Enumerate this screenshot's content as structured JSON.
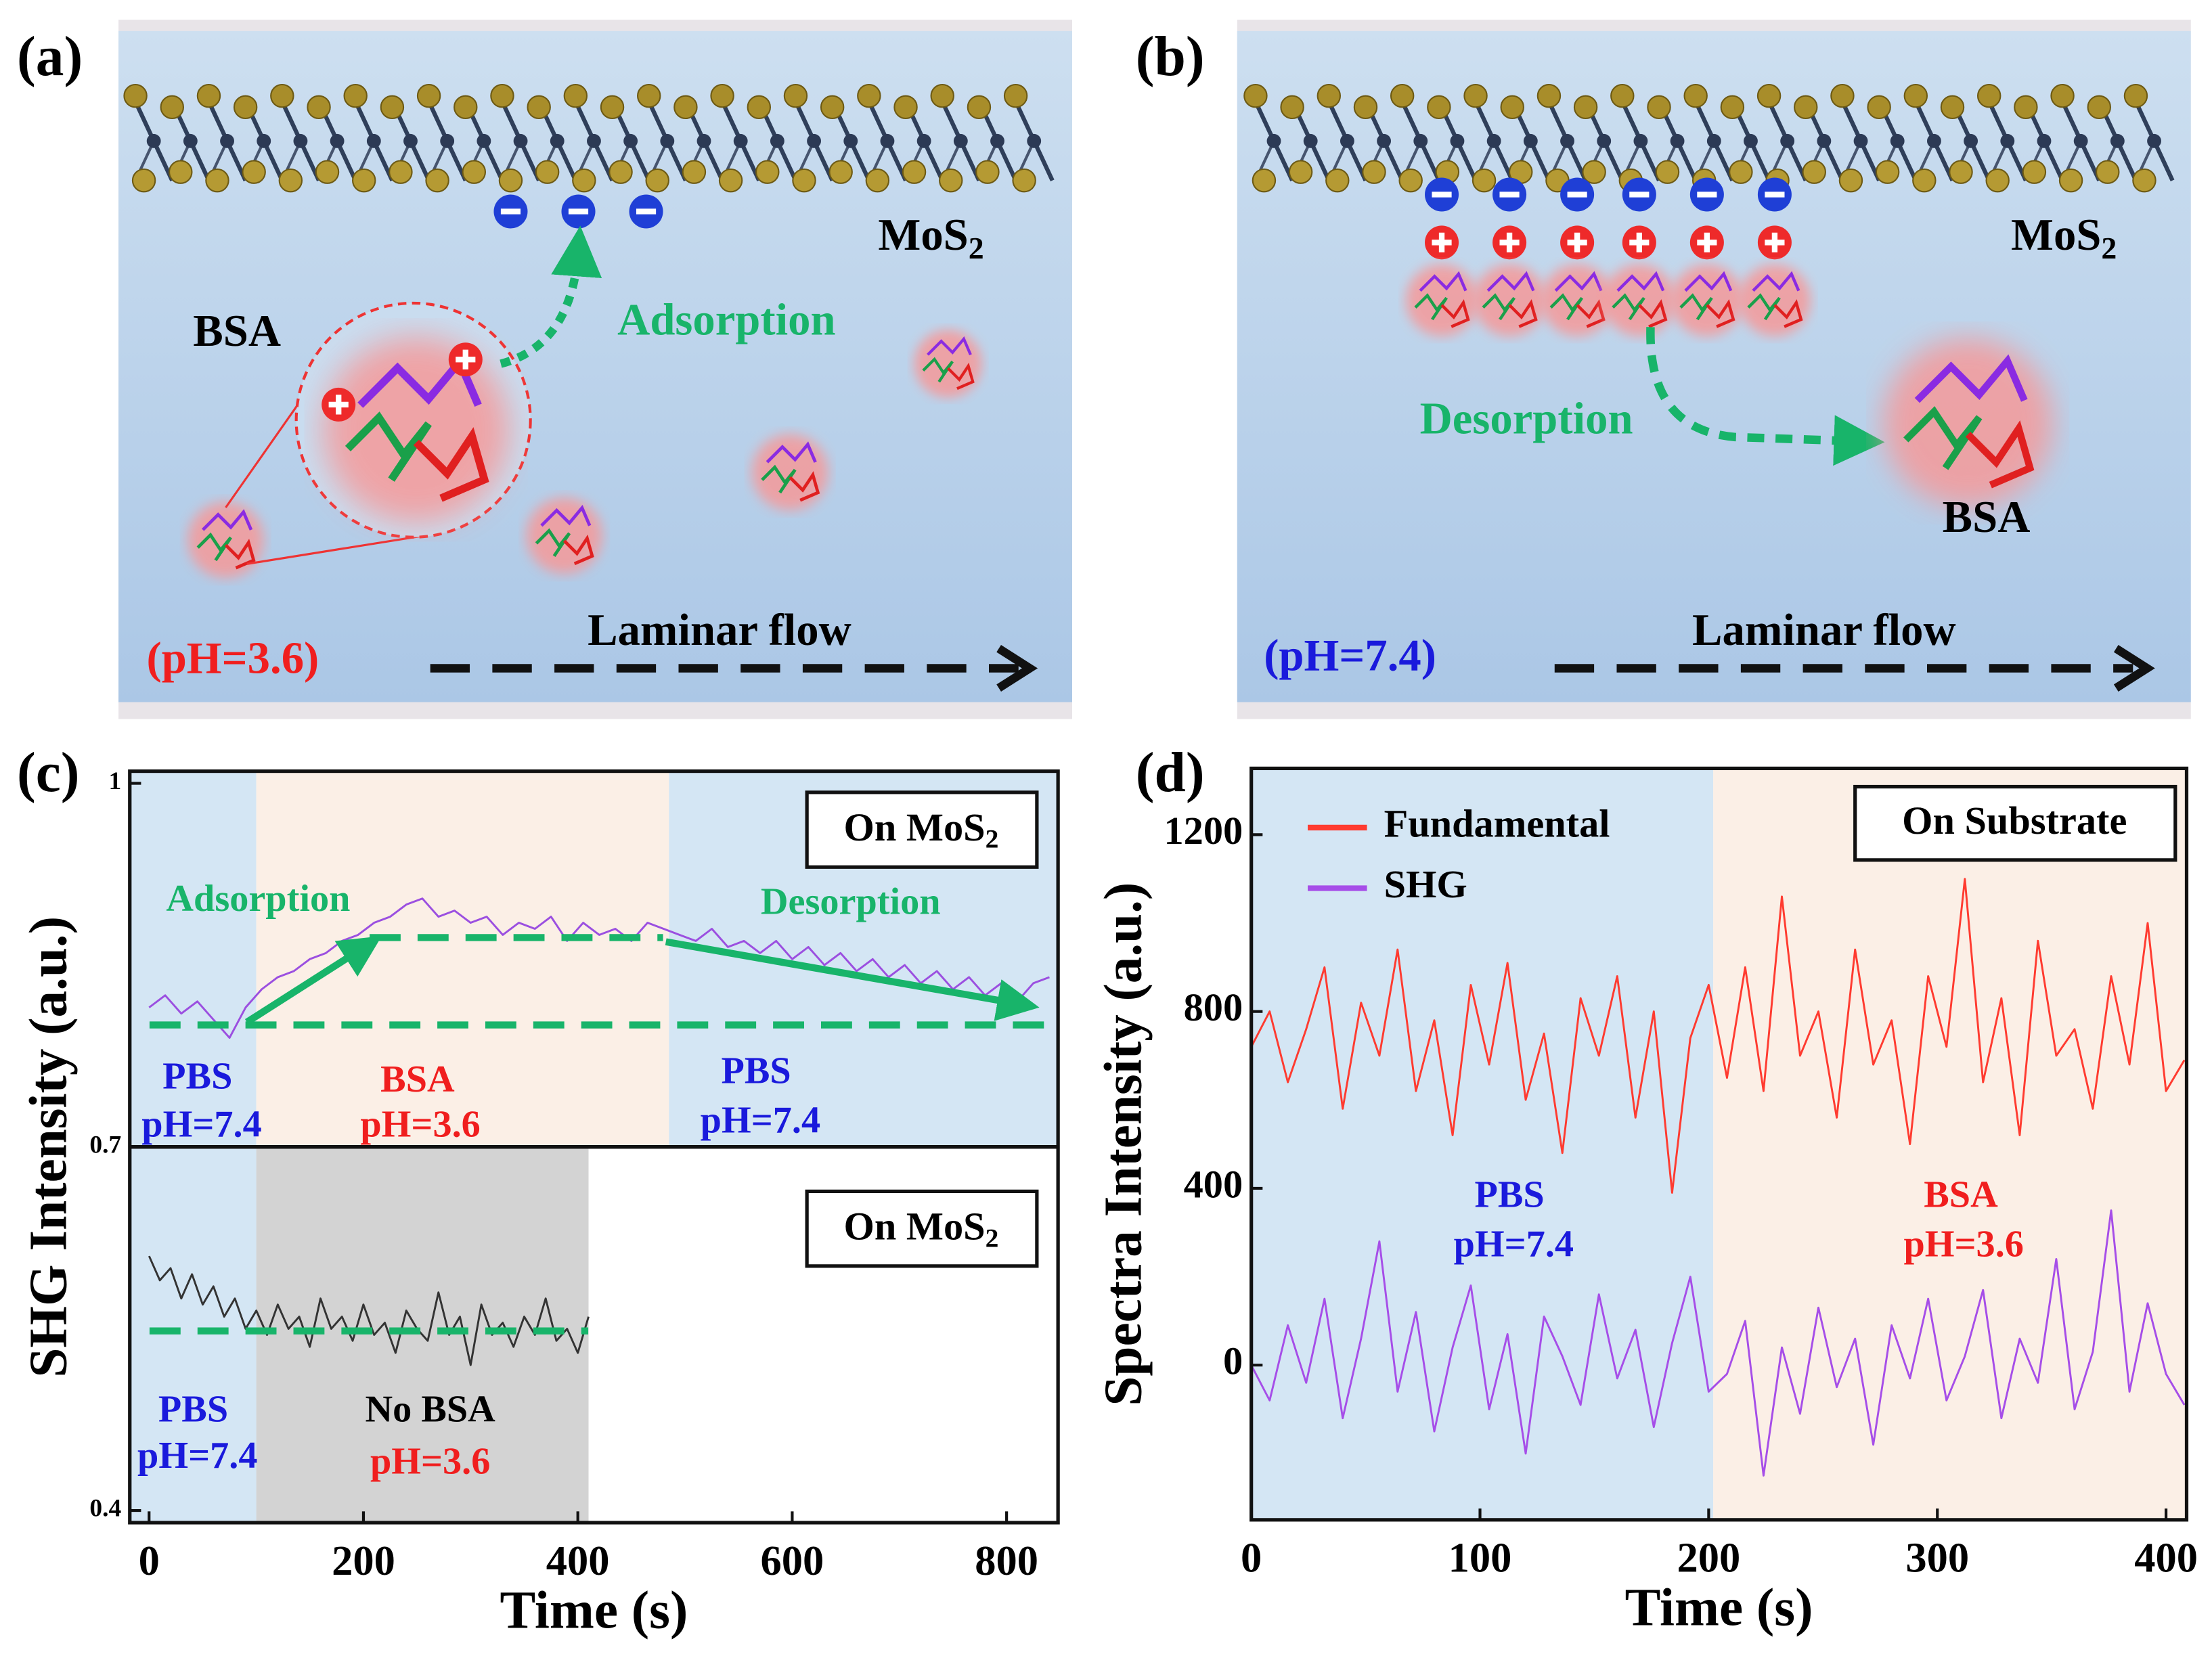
{
  "panels": {
    "a": {
      "label": "(a)",
      "material": "MoS",
      "material_sub": "2",
      "protein": "BSA",
      "process": "Adsorption",
      "ph": "(pH=3.6)",
      "flow": "Laminar flow"
    },
    "b": {
      "label": "(b)",
      "material": "MoS",
      "material_sub": "2",
      "protein": "BSA",
      "process": "Desorption",
      "ph": "(pH=7.4)",
      "flow": "Laminar flow"
    }
  },
  "chart_data": [
    {
      "type": "line",
      "panel_label": "(c)",
      "xlabel": "Time (s)",
      "ylabel": "SHG Intensity (a.u.)",
      "xlim": [
        -18,
        848
      ],
      "ylim": [
        0.39,
        1.01
      ],
      "xticks": [
        0,
        200,
        400,
        600,
        800
      ],
      "yticks": [
        0.4,
        0.7,
        1
      ],
      "regions": [
        {
          "x": [
            -18,
            100
          ],
          "y": [
            0.7,
            1.01
          ],
          "color": "#d4e6f4"
        },
        {
          "x": [
            100,
            485
          ],
          "y": [
            0.7,
            1.01
          ],
          "color": "#fbefe6"
        },
        {
          "x": [
            485,
            848
          ],
          "y": [
            0.7,
            1.01
          ],
          "color": "#d4e6f4"
        },
        {
          "x": [
            -18,
            100
          ],
          "y": [
            0.39,
            0.7
          ],
          "color": "#d4e6f4"
        },
        {
          "x": [
            100,
            410
          ],
          "y": [
            0.39,
            0.7
          ],
          "color": "#d3d3d3"
        }
      ],
      "series": [
        {
          "color": "#9b4fe0",
          "x": [
            0,
            15,
            30,
            45,
            60,
            75,
            90,
            105,
            120,
            135,
            150,
            165,
            180,
            195,
            210,
            225,
            240,
            255,
            270,
            285,
            300,
            315,
            330,
            345,
            360,
            375,
            390,
            405,
            420,
            435,
            450,
            465,
            480,
            495,
            510,
            525,
            540,
            555,
            570,
            585,
            600,
            615,
            630,
            645,
            660,
            675,
            690,
            705,
            720,
            735,
            750,
            765,
            780,
            795,
            810,
            825,
            840
          ],
          "values": [
            0.815,
            0.825,
            0.81,
            0.82,
            0.805,
            0.79,
            0.815,
            0.83,
            0.84,
            0.845,
            0.855,
            0.86,
            0.87,
            0.875,
            0.885,
            0.89,
            0.9,
            0.905,
            0.89,
            0.895,
            0.885,
            0.89,
            0.875,
            0.885,
            0.88,
            0.89,
            0.87,
            0.885,
            0.875,
            0.88,
            0.87,
            0.885,
            0.88,
            0.875,
            0.87,
            0.88,
            0.865,
            0.87,
            0.86,
            0.87,
            0.855,
            0.865,
            0.85,
            0.86,
            0.845,
            0.855,
            0.84,
            0.85,
            0.835,
            0.845,
            0.83,
            0.84,
            0.825,
            0.835,
            0.82,
            0.835,
            0.84
          ]
        },
        {
          "color": "#333333",
          "x": [
            0,
            10,
            20,
            30,
            40,
            50,
            60,
            70,
            80,
            90,
            100,
            110,
            120,
            130,
            140,
            150,
            160,
            170,
            180,
            190,
            200,
            210,
            220,
            230,
            240,
            250,
            260,
            270,
            280,
            290,
            300,
            310,
            320,
            330,
            340,
            350,
            360,
            370,
            380,
            390,
            400,
            410
          ],
          "values": [
            0.61,
            0.59,
            0.6,
            0.575,
            0.595,
            0.57,
            0.585,
            0.56,
            0.575,
            0.55,
            0.565,
            0.545,
            0.57,
            0.55,
            0.56,
            0.535,
            0.575,
            0.55,
            0.56,
            0.54,
            0.57,
            0.545,
            0.555,
            0.53,
            0.565,
            0.55,
            0.54,
            0.58,
            0.545,
            0.56,
            0.52,
            0.57,
            0.545,
            0.555,
            0.535,
            0.56,
            0.545,
            0.575,
            0.54,
            0.55,
            0.53,
            0.56
          ]
        }
      ],
      "notes": {
        "box_top": {
          "text": "On MoS",
          "sub": "2"
        },
        "box_bottom": {
          "text": "On MoS",
          "sub": "2"
        },
        "adsorption": "Adsorption",
        "desorption": "Desorption",
        "labels": [
          "PBS",
          "pH=7.4",
          "BSA",
          "pH=3.6",
          "PBS",
          "pH=7.4",
          "PBS",
          "pH=7.4",
          "No BSA",
          "pH=3.6"
        ]
      }
    },
    {
      "type": "line",
      "panel_label": "(d)",
      "xlabel": "Time (s)",
      "ylabel": "Spectra Intensity (a.u.)",
      "xlim": [
        0,
        409
      ],
      "ylim": [
        -350,
        1350
      ],
      "xticks": [
        0,
        100,
        200,
        300,
        400
      ],
      "yticks": [
        0,
        400,
        800,
        1200
      ],
      "legend": "upper left",
      "regions": [
        {
          "x": [
            0,
            202
          ],
          "y": [
            -350,
            1350
          ],
          "color": "#d4e6f4"
        },
        {
          "x": [
            202,
            409
          ],
          "y": [
            -350,
            1350
          ],
          "color": "#fbefe6"
        }
      ],
      "series": [
        {
          "name": "Fundamental",
          "color": "#ff3b30",
          "x": [
            0,
            8,
            16,
            24,
            32,
            40,
            48,
            56,
            64,
            72,
            80,
            88,
            96,
            104,
            112,
            120,
            128,
            136,
            144,
            152,
            160,
            168,
            176,
            184,
            192,
            200,
            208,
            216,
            224,
            232,
            240,
            248,
            256,
            264,
            272,
            280,
            288,
            296,
            304,
            312,
            320,
            328,
            336,
            344,
            352,
            360,
            368,
            376,
            384,
            392,
            400,
            408
          ],
          "values": [
            720,
            800,
            640,
            760,
            900,
            580,
            820,
            700,
            940,
            620,
            780,
            520,
            860,
            680,
            910,
            600,
            750,
            480,
            830,
            700,
            880,
            560,
            800,
            390,
            740,
            860,
            650,
            900,
            620,
            1060,
            700,
            800,
            560,
            940,
            680,
            780,
            500,
            880,
            720,
            1100,
            640,
            830,
            520,
            960,
            700,
            760,
            580,
            880,
            680,
            1000,
            620,
            690
          ]
        },
        {
          "name": "SHG",
          "color": "#a64ee8",
          "x": [
            0,
            8,
            16,
            24,
            32,
            40,
            48,
            56,
            64,
            72,
            80,
            88,
            96,
            104,
            112,
            120,
            128,
            136,
            144,
            152,
            160,
            168,
            176,
            184,
            192,
            200,
            208,
            216,
            224,
            232,
            240,
            248,
            256,
            264,
            272,
            280,
            288,
            296,
            304,
            312,
            320,
            328,
            336,
            344,
            352,
            360,
            368,
            376,
            384,
            392,
            400,
            408
          ],
          "values": [
            0,
            -80,
            90,
            -40,
            150,
            -120,
            60,
            280,
            -60,
            120,
            -150,
            40,
            180,
            -100,
            70,
            -200,
            110,
            20,
            -90,
            160,
            -30,
            80,
            -140,
            50,
            200,
            -60,
            -20,
            100,
            -250,
            40,
            -110,
            130,
            -50,
            60,
            -180,
            90,
            -30,
            150,
            -80,
            20,
            170,
            -120,
            60,
            -40,
            240,
            -100,
            30,
            350,
            -60,
            140,
            -20,
            -90
          ]
        }
      ],
      "notes": {
        "box": "On Substrate",
        "labels": [
          "PBS",
          "pH=7.4",
          "BSA",
          "pH=3.6"
        ]
      }
    }
  ]
}
